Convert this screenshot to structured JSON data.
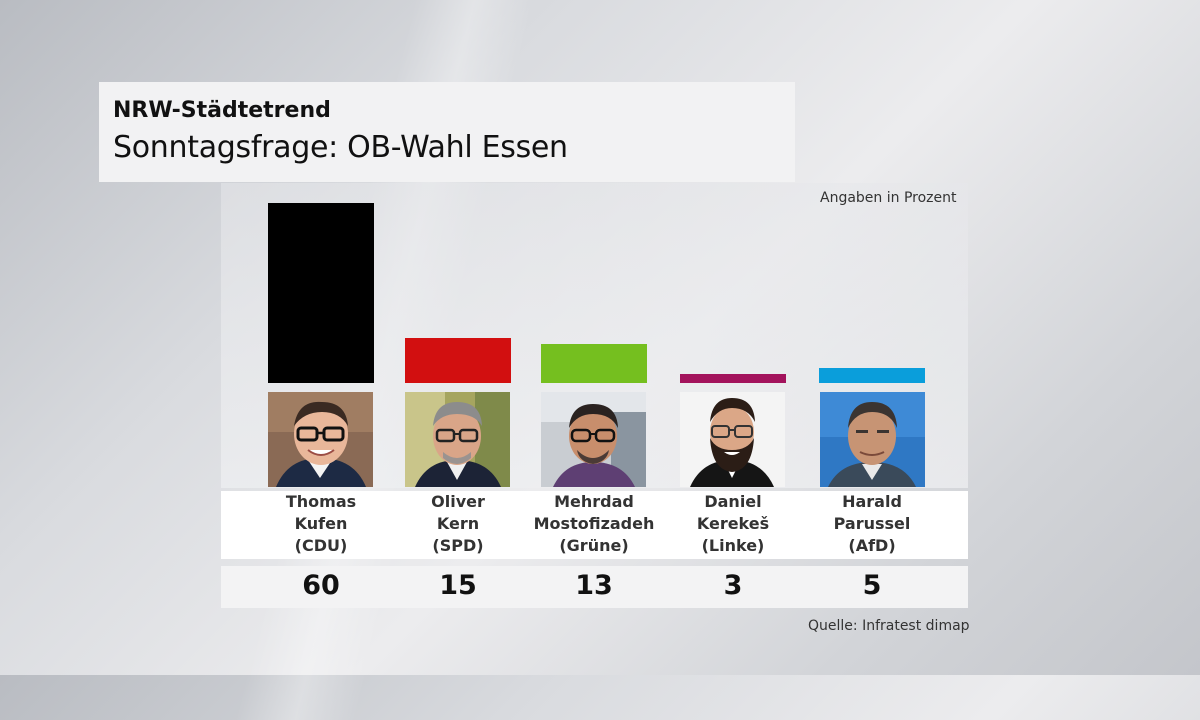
{
  "header": {
    "kicker_prefix": "NRW-",
    "kicker_bold": "Städtetrend",
    "title": "Sonntagsfrage: OB-Wahl Essen"
  },
  "unit_note": "Angaben in Prozent",
  "source": "Quelle: Infratest dimap",
  "chart_data": {
    "type": "bar",
    "title": "Sonntagsfrage: OB-Wahl Essen",
    "ylabel": "Angaben in Prozent",
    "ylim": [
      0,
      60
    ],
    "categories": [
      "Thomas Kufen (CDU)",
      "Oliver Kern (SPD)",
      "Mehrdad Mostofizadeh (Grüne)",
      "Daniel Kerekeš (Linke)",
      "Harald Parussel (AfD)"
    ],
    "values": [
      60,
      15,
      13,
      3,
      5
    ],
    "candidates": [
      {
        "first": "Thomas",
        "last": "Kufen",
        "party": "(CDU)",
        "value": "60",
        "color": "#000000"
      },
      {
        "first": "Oliver",
        "last": "Kern",
        "party": "(SPD)",
        "value": "15",
        "color": "#d20f10"
      },
      {
        "first": "Mehrdad",
        "last": "Mostofizadeh",
        "party": "(Grüne)",
        "value": "13",
        "color": "#75bf1f"
      },
      {
        "first": "Daniel",
        "last": "Kerekeš",
        "party": "(Linke)",
        "value": "3",
        "color": "#a3135c"
      },
      {
        "first": "Harald",
        "last": "Parussel",
        "party": "(AfD)",
        "value": "5",
        "color": "#0a9edb"
      }
    ]
  }
}
